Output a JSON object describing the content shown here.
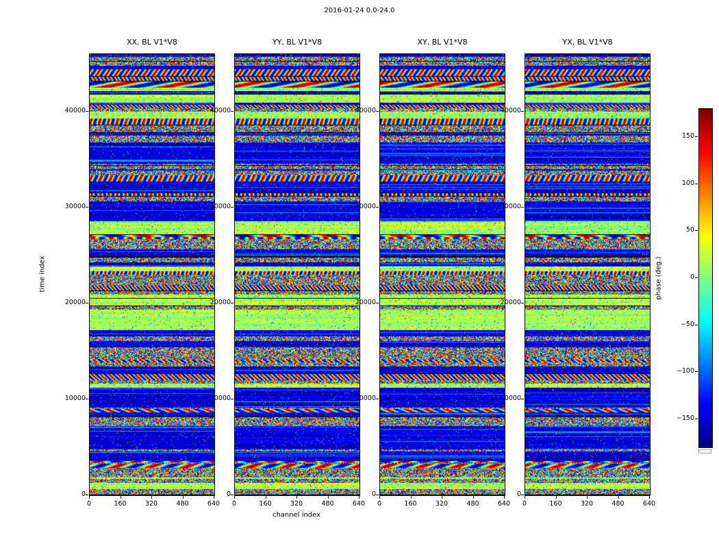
{
  "chart_data": {
    "type": "heatmap",
    "suptitle": "2016-01-24 0.0-24.0",
    "xlabel": "channel index",
    "ylabel": "time index",
    "panels": [
      {
        "title": "XX, BL V1*V8"
      },
      {
        "title": "YY, BL V1*V8"
      },
      {
        "title": "XY, BL V1*V8"
      },
      {
        "title": "YX, BL V1*V8"
      }
    ],
    "xticks": [
      0,
      160,
      320,
      480,
      640
    ],
    "yticks": [
      0,
      10000,
      20000,
      30000,
      40000
    ],
    "xlim": [
      0,
      640
    ],
    "ylim": [
      0,
      46000
    ],
    "colorbar": {
      "label": "phase (deg.)",
      "ticks": [
        150,
        100,
        50,
        0,
        -50,
        -100,
        -150
      ],
      "vmin": -180,
      "vmax": 180,
      "colormap": "jet"
    },
    "description": "Four waterfall heatmaps of visibility phase (degrees, jet colormap) versus channel index (x, 0-640) and time index (y, 0-46000) for polarization products XX, YY, XY and YX of baseline V1*V8 on 2016-01-24 hours 0.0-24.0. Content is noise-like phase arranged in horizontal bands: speckled rainbow noise rows, smooth sinusoidal red/blue interference bands, solid dark-navy (~-180 deg) stretches near time indices ~9000-11500, ~30000-31000 and ~35000-37500, yellow-green (~0 deg) coherent bands near ~18500 and ~28000, separated by thin black flagged rows; band structure is shared across all four panels."
  }
}
